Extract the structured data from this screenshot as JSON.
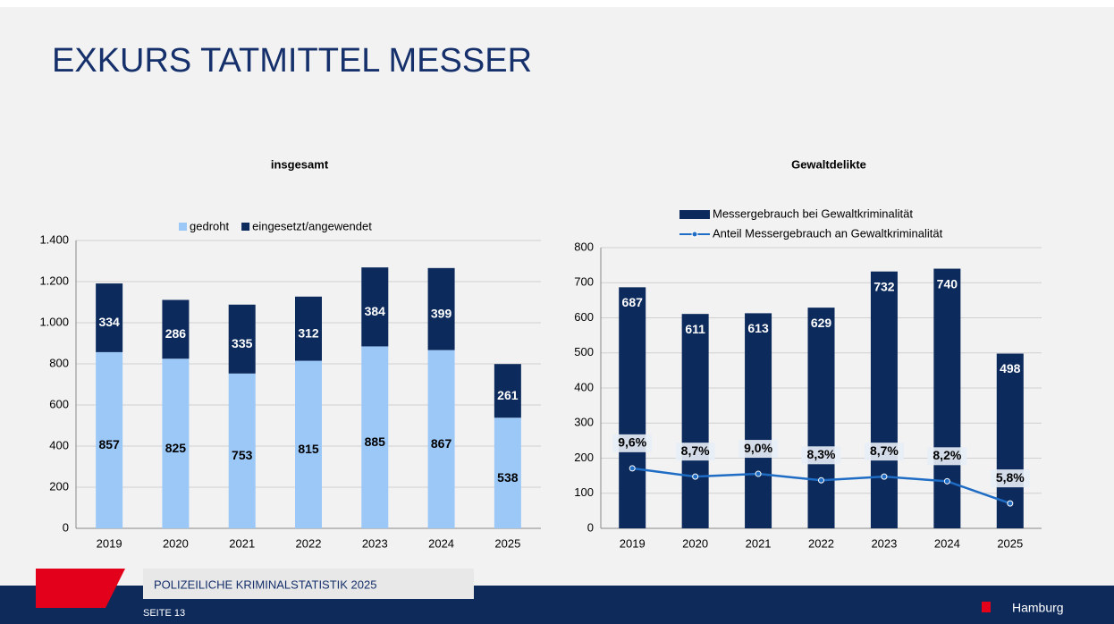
{
  "title": "EXKURS TATMITTEL MESSER",
  "footer": {
    "text": "POLIZEILICHE KRIMINALSTATISTIK 2025",
    "page": "SEITE 13",
    "logo": "Hamburg"
  },
  "chart_data": [
    {
      "type": "bar",
      "stacked": true,
      "title": "insgesamt",
      "categories": [
        "2019",
        "2020",
        "2021",
        "2022",
        "2023",
        "2024",
        "2025"
      ],
      "series": [
        {
          "name": "gedroht",
          "color": "#9cc8f8",
          "values": [
            857,
            825,
            753,
            815,
            885,
            867,
            538
          ]
        },
        {
          "name": "eingesetzt/angewendet",
          "color": "#0c2a5c",
          "values": [
            334,
            286,
            335,
            312,
            384,
            399,
            261
          ]
        }
      ],
      "ylim": [
        0,
        1400
      ],
      "yticks": [
        0,
        200,
        400,
        600,
        800,
        {
          "value": 1000,
          "label": "1.000"
        },
        {
          "value": 1200,
          "label": "1.200"
        },
        {
          "value": 1400,
          "label": "1.400"
        }
      ],
      "grid": true,
      "legend": "top"
    },
    {
      "type": "bar",
      "stacked": false,
      "title": "Gewaltdelikte",
      "categories": [
        "2019",
        "2020",
        "2021",
        "2022",
        "2023",
        "2024",
        "2025"
      ],
      "series": [
        {
          "name": "Messergebrauch bei Gewaltkriminalität",
          "color": "#0c2a5c",
          "values": [
            687,
            611,
            613,
            629,
            732,
            740,
            498
          ]
        },
        {
          "name": "Anteil Messergebrauch an Gewaltkriminalität",
          "color": "#1f6cc4",
          "type": "line",
          "axis": "y2",
          "values": [
            9.6,
            8.7,
            9.0,
            8.3,
            8.7,
            8.2,
            5.8
          ],
          "value_labels": [
            "9,6%",
            "8,7%",
            "9,0%",
            "8,3%",
            "8,7%",
            "8,2%",
            "5,8%"
          ]
        }
      ],
      "ylim": [
        0,
        800
      ],
      "yticks": [
        0,
        100,
        200,
        300,
        400,
        500,
        600,
        700,
        800
      ],
      "y2lim": [
        3.1,
        33.5
      ],
      "grid": true,
      "legend": "top"
    }
  ]
}
